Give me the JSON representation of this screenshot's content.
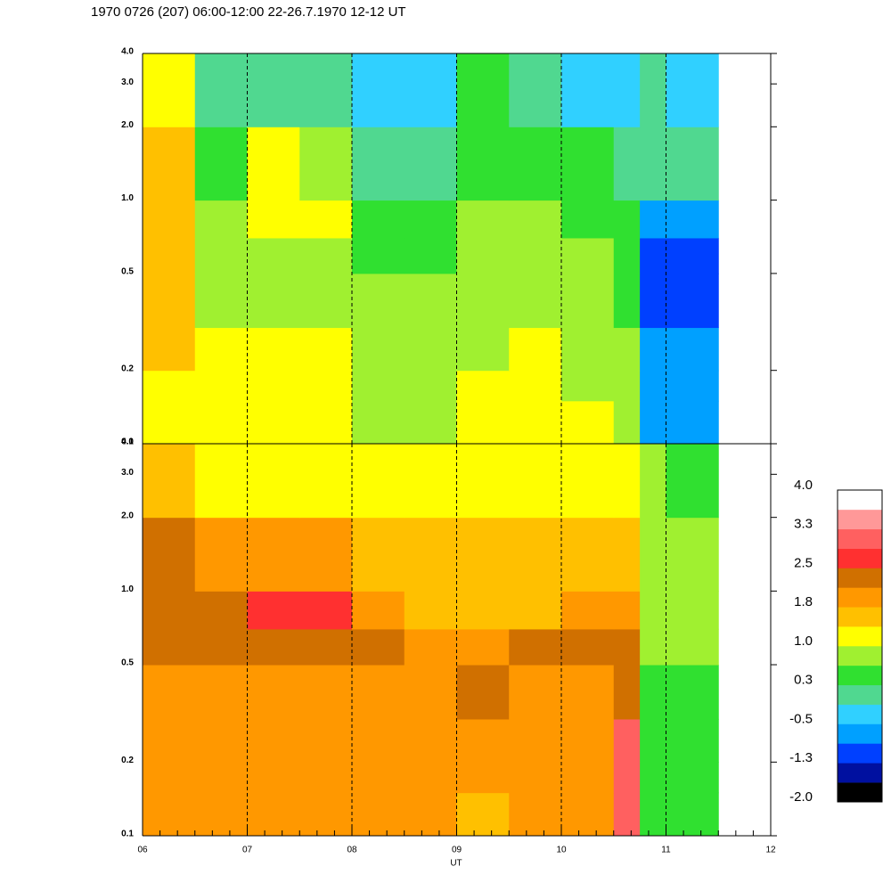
{
  "chart_data": {
    "type": "heatmap",
    "title": "1970 0726 (207) 06:00-12:00 22-26.7.1970  12-12 UT",
    "xlabel": "UT",
    "xlim": [
      6,
      12
    ],
    "xticks": [
      {
        "value": 6,
        "label": "06"
      },
      {
        "value": 7,
        "label": "07"
      },
      {
        "value": 8,
        "label": "08"
      },
      {
        "value": 9,
        "label": "09"
      },
      {
        "value": 10,
        "label": "10"
      },
      {
        "value": 11,
        "label": "11"
      },
      {
        "value": 12,
        "label": "12"
      }
    ],
    "grid": true,
    "log_y": true,
    "ylim": [
      0.1,
      4
    ],
    "yticks": [
      0.1,
      0.2,
      0.5,
      {
        "value": 1,
        "label": "1.0"
      },
      {
        "value": 2,
        "label": "2.0"
      },
      {
        "value": 3,
        "label": "3.0"
      },
      {
        "value": 4,
        "label": "4.0"
      }
    ],
    "xbins": [
      6,
      6.5,
      7,
      7.5,
      8,
      8.5,
      9,
      9.5,
      10,
      10.5,
      10.75,
      11,
      11.5
    ],
    "ybins": [
      0.1,
      0.15,
      0.2,
      0.3,
      0.5,
      0.7,
      1,
      2,
      4
    ],
    "panels": [
      {
        "values": [
          [
            1.3,
            1.2,
            1.1,
            1.2,
            0.9,
            0.8,
            1.0,
            1.1,
            1.0,
            0.8,
            -0.7,
            -0.7
          ],
          [
            1.3,
            1.1,
            1.1,
            1.1,
            0.9,
            0.8,
            1.0,
            1.0,
            0.9,
            0.8,
            -0.7,
            -0.7
          ],
          [
            1.4,
            1.0,
            1.0,
            1.1,
            0.8,
            0.8,
            0.9,
            1.0,
            0.8,
            0.7,
            -0.8,
            -0.8
          ],
          [
            1.5,
            0.9,
            0.8,
            0.9,
            0.7,
            0.7,
            0.8,
            0.9,
            0.8,
            0.6,
            -0.9,
            -1.0
          ],
          [
            1.5,
            0.8,
            0.8,
            0.9,
            0.6,
            0.6,
            0.8,
            0.8,
            0.7,
            0.5,
            -0.9,
            -1.0
          ],
          [
            1.6,
            0.9,
            1.0,
            1.0,
            0.6,
            0.5,
            0.7,
            0.7,
            0.6,
            0.4,
            -0.6,
            -0.8
          ],
          [
            1.5,
            0.5,
            1.0,
            0.7,
            0.0,
            0.1,
            0.6,
            0.5,
            0.3,
            0.2,
            0.1,
            -0.1
          ],
          [
            1.2,
            0.2,
            0.2,
            0.1,
            -0.3,
            -0.2,
            0.3,
            0.1,
            -0.2,
            -0.3,
            -0.1,
            -0.3
          ]
        ]
      },
      {
        "values": [
          [
            1.9,
            1.8,
            1.8,
            1.9,
            1.9,
            1.9,
            1.7,
            1.8,
            1.8,
            2.9,
            0.4,
            0.4
          ],
          [
            2.0,
            1.9,
            1.9,
            1.9,
            1.9,
            1.9,
            1.8,
            1.9,
            1.9,
            2.9,
            0.4,
            0.4
          ],
          [
            1.9,
            1.8,
            1.9,
            1.8,
            1.9,
            1.8,
            1.9,
            1.9,
            1.9,
            2.9,
            0.4,
            0.5
          ],
          [
            2.0,
            1.9,
            1.9,
            1.9,
            1.9,
            2.1,
            2.2,
            2.1,
            2.1,
            2.4,
            0.5,
            0.6
          ],
          [
            2.4,
            2.4,
            2.4,
            2.4,
            2.3,
            1.9,
            2.1,
            2.2,
            2.4,
            2.3,
            0.7,
            0.7
          ],
          [
            2.3,
            2.4,
            2.5,
            2.5,
            1.9,
            1.7,
            1.7,
            1.7,
            1.9,
            1.8,
            0.8,
            0.8
          ],
          [
            2.2,
            1.8,
            1.8,
            1.8,
            1.7,
            1.6,
            1.6,
            1.6,
            1.6,
            1.5,
            0.9,
            0.8
          ],
          [
            1.6,
            1.3,
            1.3,
            1.3,
            1.2,
            1.1,
            1.3,
            1.2,
            1.2,
            1.1,
            0.7,
            0.6
          ]
        ]
      }
    ],
    "clim": [
      -2,
      4
    ],
    "colorscale": [
      "#000000",
      "#0010a0",
      "#0040ff",
      "#00a0ff",
      "#30d0ff",
      "#50d890",
      "#30e030",
      "#a0f030",
      "#ffff00",
      "#ffc000",
      "#ff9800",
      "#d07000",
      "#ff3030",
      "#ff6060",
      "#ff9898",
      "#ffffff"
    ],
    "colorbar_ticks": [
      {
        "value": -2,
        "label": "-2.0"
      },
      {
        "value": -1.25,
        "label": "-1.3"
      },
      {
        "value": -0.5,
        "label": "-0.5"
      },
      {
        "value": 0.25,
        "label": "0.3"
      },
      {
        "value": 1,
        "label": "1.0"
      },
      {
        "value": 1.75,
        "label": "1.8"
      },
      {
        "value": 2.5,
        "label": "2.5"
      },
      {
        "value": 3.25,
        "label": "3.3"
      },
      {
        "value": 4,
        "label": "4.0"
      }
    ]
  }
}
